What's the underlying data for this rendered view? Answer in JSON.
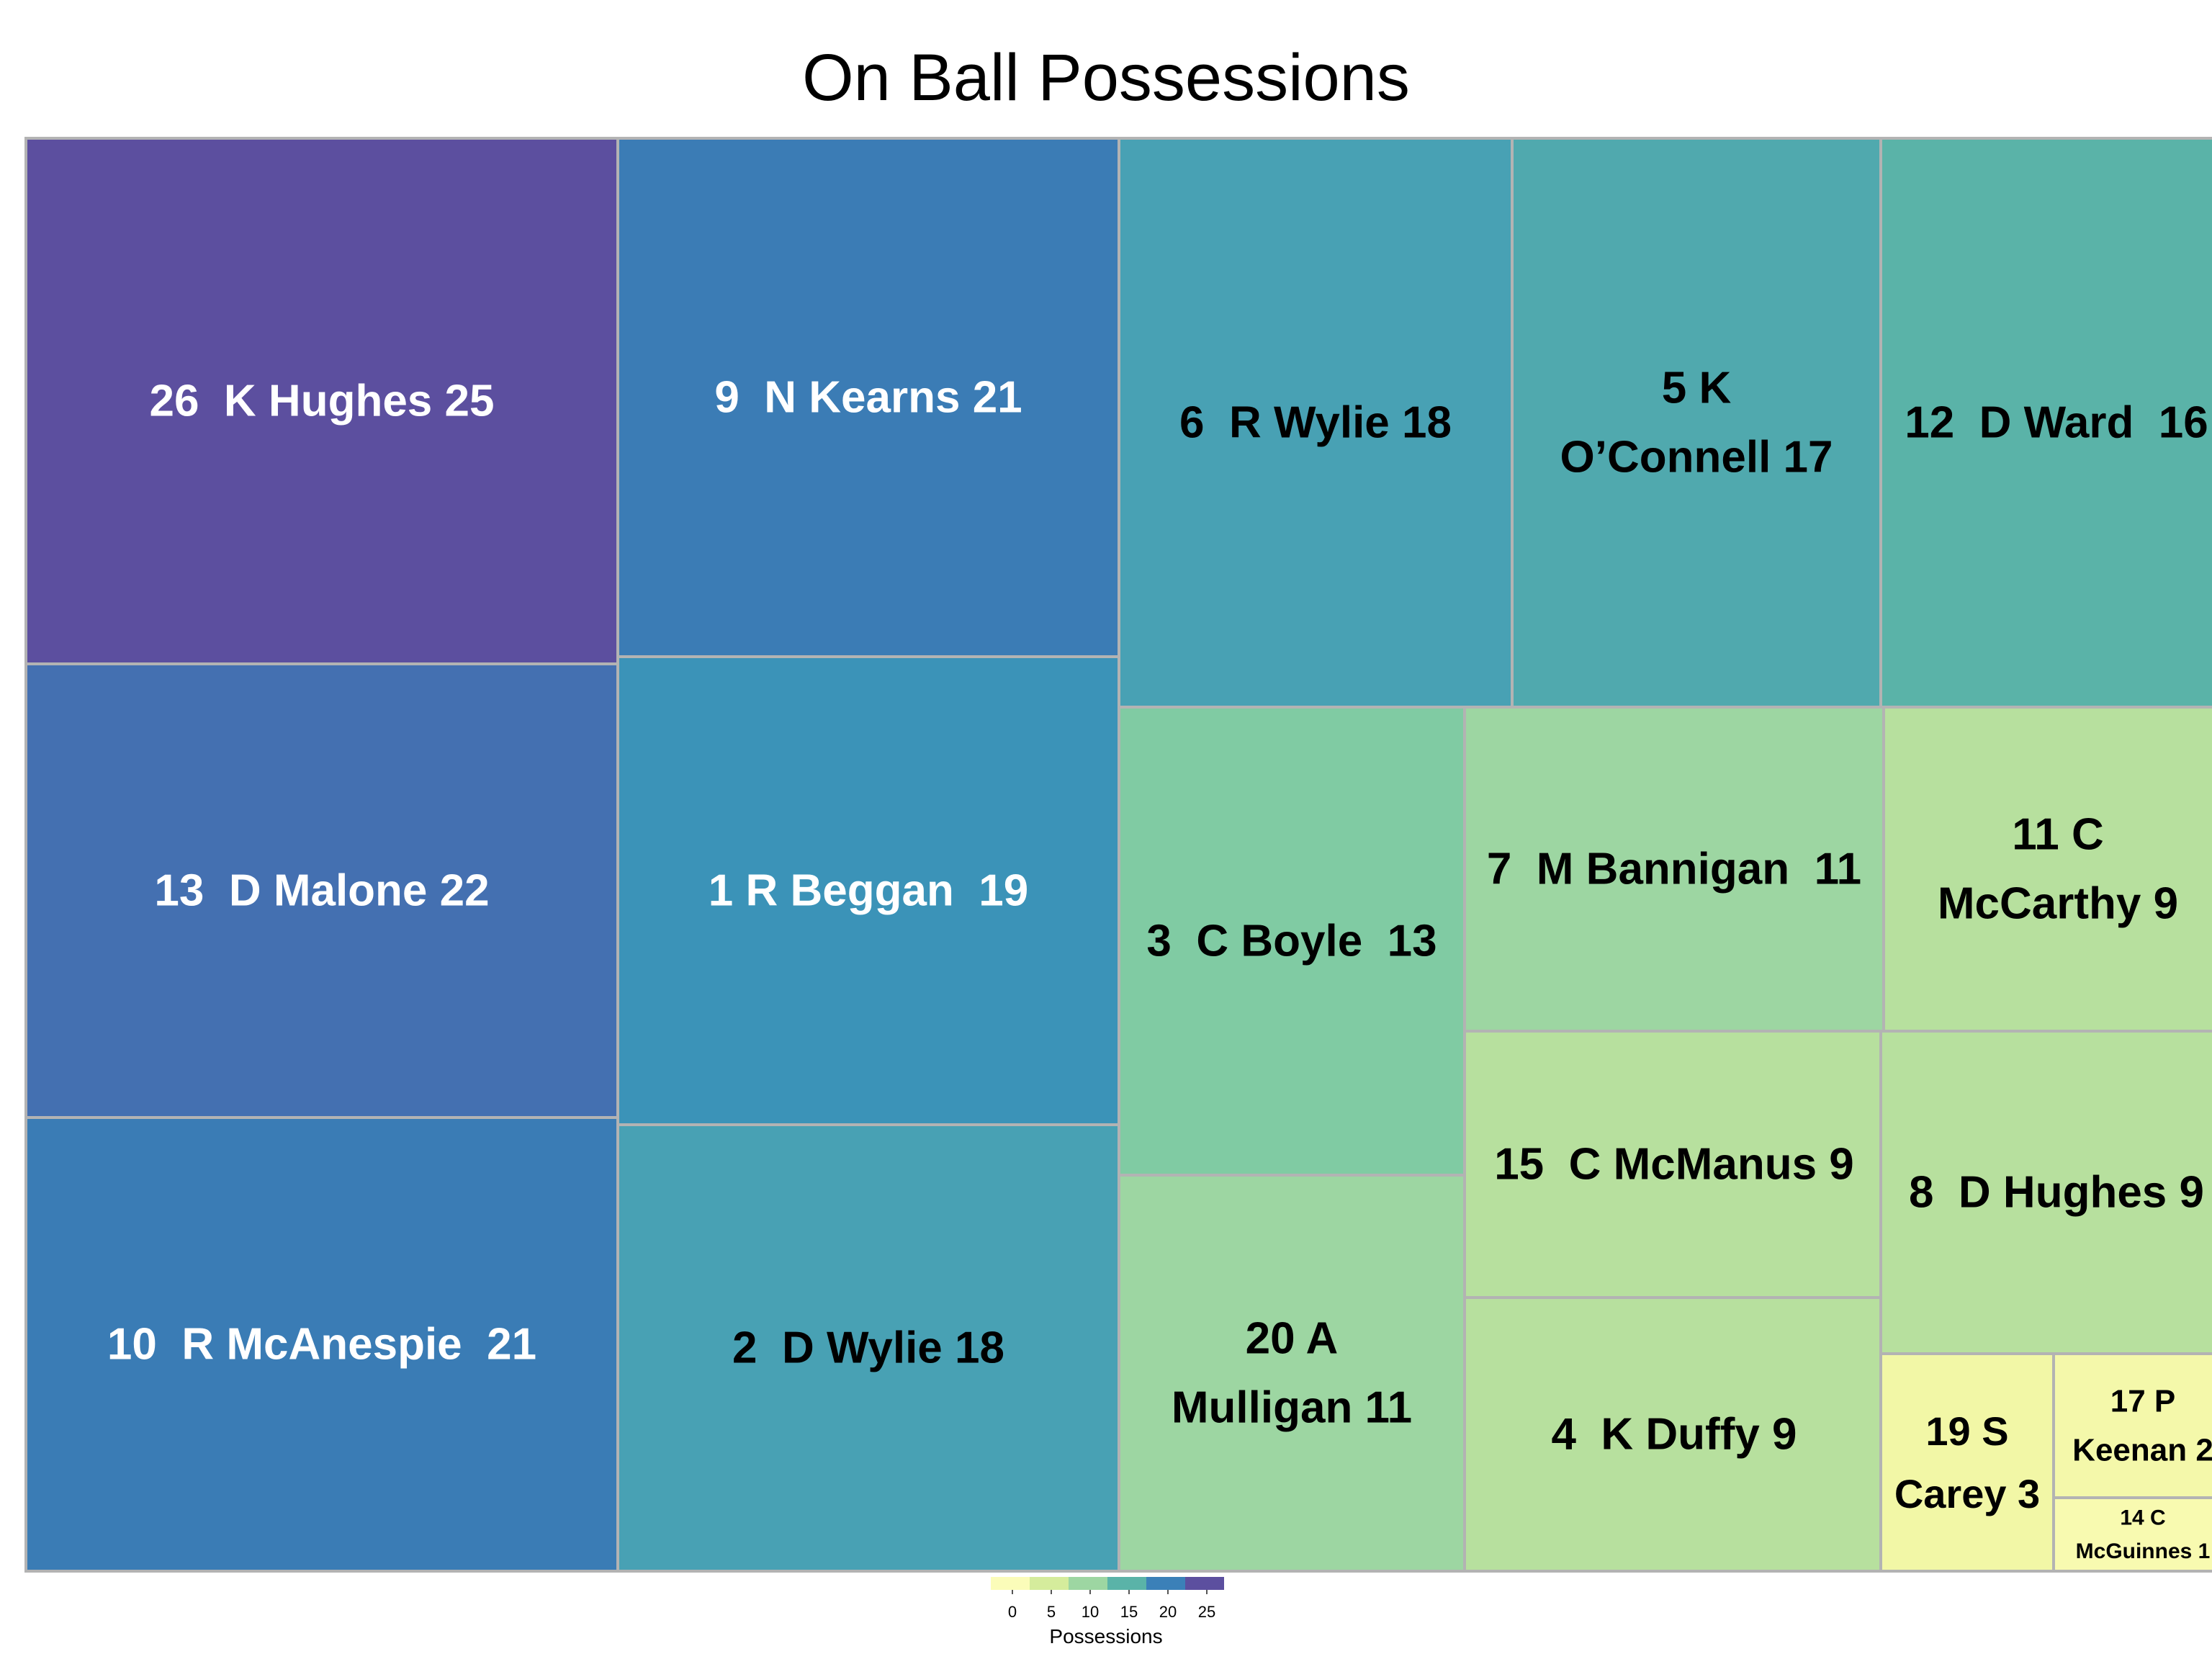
{
  "chart_data": {
    "type": "treemap",
    "title": "On Ball Possessions",
    "tiles": [
      {
        "label": [
          "26  K Hughes 25"
        ],
        "value": 25,
        "color": "#5c4f9f"
      },
      {
        "label": [
          "13  D Malone 22"
        ],
        "value": 22,
        "color": "#4470b1"
      },
      {
        "label": [
          "10  R McAnespie  21"
        ],
        "value": 21,
        "color": "#3a7cb5"
      },
      {
        "label": [
          "9  N Kearns 21"
        ],
        "value": 21,
        "color": "#3b7cb5"
      },
      {
        "label": [
          "1 R Beggan  19"
        ],
        "value": 19,
        "color": "#3b93b8"
      },
      {
        "label": [
          "2  D Wylie 18"
        ],
        "value": 18,
        "color": "#48a1b4"
      },
      {
        "label": [
          "6  R Wylie 18"
        ],
        "value": 18,
        "color": "#48a1b4"
      },
      {
        "label": [
          "5 K",
          "O’Connell 17"
        ],
        "value": 17,
        "color": "#50a9ae"
      },
      {
        "label": [
          "12  D Ward  16"
        ],
        "value": 16,
        "color": "#5ab3a8"
      },
      {
        "label": [
          "3  C Boyle  13"
        ],
        "value": 13,
        "color": "#80cba3"
      },
      {
        "label": [
          "20 A",
          "Mulligan 11"
        ],
        "value": 11,
        "color": "#9dd6a2"
      },
      {
        "label": [
          "7  M Bannigan  11"
        ],
        "value": 11,
        "color": "#9dd6a2"
      },
      {
        "label": [
          "15  C McManus 9"
        ],
        "value": 9,
        "color": "#b7e09e"
      },
      {
        "label": [
          "4  K Duffy 9"
        ],
        "value": 9,
        "color": "#b7e09e"
      },
      {
        "label": [
          "11 C",
          "McCarthy 9"
        ],
        "value": 9,
        "color": "#b7e09e"
      },
      {
        "label": [
          "8  D Hughes 9"
        ],
        "value": 9,
        "color": "#b7e09e"
      },
      {
        "label": [
          "19 S",
          "Carey 3"
        ],
        "value": 3,
        "color": "#f2f7a6"
      },
      {
        "label": [
          "17 P",
          "Keenan 2"
        ],
        "value": 2,
        "color": "#f4f8aa"
      },
      {
        "label": [
          "14 C",
          "McGuinnes 1"
        ],
        "value": 1,
        "color": "#f8fab0"
      }
    ],
    "legend": {
      "title": "Possessions",
      "ticks": [
        "0",
        "5",
        "10",
        "15",
        "20",
        "25"
      ],
      "colors": [
        "#fbfcb9",
        "#d5ec9c",
        "#9dd6a2",
        "#5ab3a8",
        "#3b80b8",
        "#5c4f9f"
      ]
    },
    "colors": {
      "border": "#b3b3b3",
      "dark_text": "#000000",
      "light_text": "#ffffff"
    }
  }
}
